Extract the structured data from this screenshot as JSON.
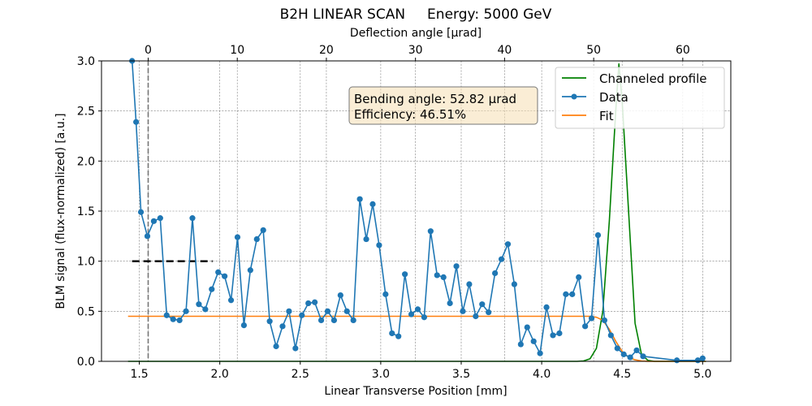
{
  "chart_data": {
    "type": "line",
    "title": "B2H LINEAR SCAN     Energy: 5000 GeV",
    "xlabel": "Linear Transverse Position [mm]",
    "ylabel": "BLM signal (flux-normalized) [a.u.]",
    "top_xlabel": "Deflection angle [μrad]",
    "xlim": [
      1.265,
      5.175
    ],
    "ylim": [
      0,
      3.0
    ],
    "xticks": [
      "1.5",
      "2.0",
      "2.5",
      "3.0",
      "3.5",
      "4.0",
      "4.5",
      "5.0"
    ],
    "xtick_values": [
      1.5,
      2.0,
      2.5,
      3.0,
      3.5,
      4.0,
      4.5,
      5.0
    ],
    "yticks": [
      "0.0",
      "0.5",
      "1.0",
      "1.5",
      "2.0",
      "2.5",
      "3.0"
    ],
    "ytick_values": [
      0,
      0.5,
      1.0,
      1.5,
      2.0,
      2.5,
      3.0
    ],
    "top_xticks": [
      "0",
      "10",
      "20",
      "30",
      "40",
      "50",
      "60"
    ],
    "top_xtick_positions": [
      1.555,
      2.1086,
      2.6622,
      3.2158,
      3.7694,
      4.323,
      4.8766
    ],
    "grid": true,
    "legend": {
      "placement": "top-right",
      "entries": [
        "Channeled profile",
        "Data",
        "Fit"
      ]
    },
    "annotation": {
      "line1": "Bending angle: 52.82 μrad",
      "line2": "Efficiency: 46.51%"
    },
    "vline_x": 1.555,
    "hline": {
      "x0": 1.455,
      "x1": 1.955,
      "y": 1.0
    },
    "series": [
      {
        "name": "Channeled profile",
        "color": "#008000",
        "style": "line",
        "x": [
          1.43,
          4.22,
          4.26,
          4.3,
          4.34,
          4.38,
          4.42,
          4.46,
          4.48,
          4.5,
          4.54,
          4.58,
          4.62,
          4.66,
          4.7,
          5.02
        ],
        "y": [
          0,
          0,
          0.004,
          0.025,
          0.13,
          0.5,
          1.4,
          2.5,
          2.97,
          2.6,
          1.5,
          0.38,
          0.07,
          0.01,
          0,
          0
        ]
      },
      {
        "name": "Data",
        "color": "#1f77b4",
        "style": "line-marker",
        "x": [
          1.455,
          1.48,
          1.51,
          1.55,
          1.59,
          1.63,
          1.67,
          1.71,
          1.75,
          1.79,
          1.83,
          1.87,
          1.91,
          1.95,
          1.99,
          2.03,
          2.07,
          2.11,
          2.15,
          2.19,
          2.23,
          2.27,
          2.31,
          2.35,
          2.39,
          2.43,
          2.47,
          2.51,
          2.55,
          2.59,
          2.63,
          2.67,
          2.71,
          2.75,
          2.79,
          2.83,
          2.87,
          2.91,
          2.95,
          2.99,
          3.03,
          3.07,
          3.11,
          3.15,
          3.19,
          3.23,
          3.27,
          3.31,
          3.35,
          3.39,
          3.43,
          3.47,
          3.51,
          3.55,
          3.59,
          3.63,
          3.67,
          3.71,
          3.75,
          3.79,
          3.83,
          3.87,
          3.91,
          3.95,
          3.99,
          4.03,
          4.07,
          4.11,
          4.15,
          4.19,
          4.23,
          4.27,
          4.31,
          4.35,
          4.39,
          4.43,
          4.47,
          4.51,
          4.55,
          4.59,
          4.63,
          4.84,
          4.97,
          5.0
        ],
        "y": [
          3.0,
          2.39,
          1.49,
          1.25,
          1.4,
          1.43,
          0.46,
          0.42,
          0.41,
          0.5,
          1.43,
          0.57,
          0.52,
          0.72,
          0.89,
          0.85,
          0.61,
          1.24,
          0.36,
          0.91,
          1.22,
          1.31,
          0.4,
          0.15,
          0.35,
          0.5,
          0.13,
          0.46,
          0.58,
          0.59,
          0.41,
          0.5,
          0.41,
          0.66,
          0.5,
          0.41,
          1.62,
          1.22,
          1.57,
          1.16,
          0.67,
          0.28,
          0.25,
          0.87,
          0.47,
          0.52,
          0.44,
          1.3,
          0.86,
          0.84,
          0.58,
          0.95,
          0.5,
          0.77,
          0.45,
          0.57,
          0.49,
          0.88,
          1.02,
          1.17,
          0.77,
          0.17,
          0.34,
          0.2,
          0.08,
          0.54,
          0.26,
          0.28,
          0.67,
          0.67,
          0.84,
          0.35,
          0.43,
          1.26,
          0.41,
          0.26,
          0.13,
          0.07,
          0.04,
          0.11,
          0.05,
          0.01,
          0.01,
          0.03
        ]
      },
      {
        "name": "Fit",
        "color": "#ff7f0e",
        "style": "line",
        "x": [
          1.43,
          4.3,
          4.34,
          4.38,
          4.42,
          4.46,
          4.5,
          4.54,
          4.58,
          4.62,
          4.66,
          4.7,
          5.02
        ],
        "y": [
          0.45,
          0.45,
          0.44,
          0.41,
          0.32,
          0.2,
          0.1,
          0.04,
          0.015,
          0.004,
          0.001,
          0,
          0
        ]
      }
    ]
  }
}
